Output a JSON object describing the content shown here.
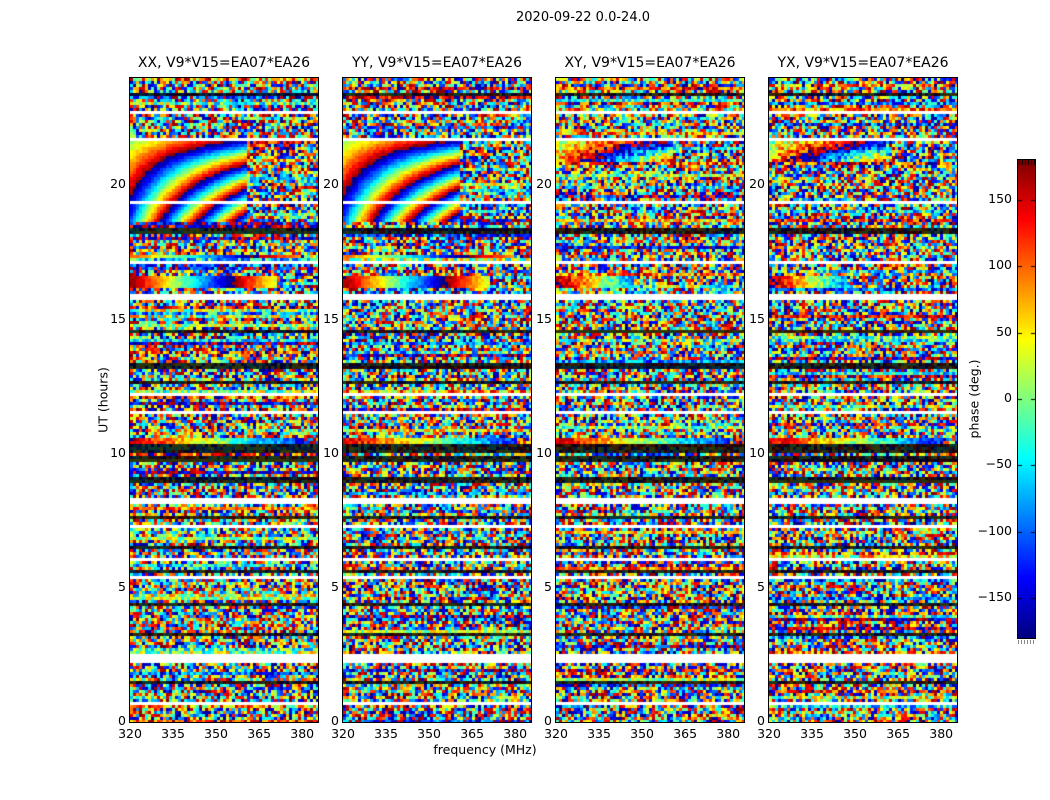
{
  "figure": {
    "suptitle": "2020-09-22 0.0-24.0",
    "xlabel": "frequency (MHz)",
    "ylabel": "UT (hours)",
    "colorbar_label": "phase (deg.)"
  },
  "chart_data": {
    "type": "heatmap",
    "title": "2020-09-22 0.0-24.0",
    "subtitle_meaning": "date and UT hour range of observation",
    "xlabel": "frequency (MHz)",
    "ylabel": "UT (hours)",
    "x_range": [
      320,
      385.5
    ],
    "x_ticks": [
      320,
      335,
      350,
      365,
      380
    ],
    "x_tick_labels": [
      "320",
      "335",
      "350",
      "365",
      "380"
    ],
    "y_range": [
      0,
      24
    ],
    "y_ticks": [
      0,
      5,
      10,
      15,
      20
    ],
    "y_tick_labels": [
      "0",
      "5",
      "10",
      "15",
      "20"
    ],
    "grid": false,
    "colorbar": {
      "label": "phase (deg.)",
      "colormap": "jet",
      "range": [
        -180,
        180
      ],
      "tick_values": [
        150,
        100,
        50,
        0,
        -50,
        -100,
        -150
      ],
      "tick_labels": [
        "150",
        "100",
        "50",
        "0",
        "−50",
        "−100",
        "−150"
      ],
      "top_color": "#7f0000",
      "bottom_color": "#00007f"
    },
    "panels": [
      {
        "title": "XX, V9*V15=EA07*EA26",
        "pol": "XX",
        "fringes": "strong"
      },
      {
        "title": "YY, V9*V15=EA07*EA26",
        "pol": "YY",
        "fringes": "strong"
      },
      {
        "title": "XY, V9*V15=EA07*EA26",
        "pol": "XY",
        "fringes": "weak"
      },
      {
        "title": "YX, V9*V15=EA07*EA26",
        "pol": "YX",
        "fringes": "weak"
      }
    ],
    "content_description": "random wrapped interferometer phases (uniform -180..180 deg speckle) in all panels; coherent rainbow delay fringes in XX and YY between about UT 18.7-21.7 below ~361 MHz; smooth phase-gradient bands near UT 16.3 and UT 10.5; horizontal white rows are flagged times; dark rows are low-amplitude times",
    "flagged_white_rows_ut_hours": [
      {
        "hour": 22.7,
        "width": 0.14
      },
      {
        "hour": 21.75,
        "width": 0.13
      },
      {
        "hour": 19.33,
        "width": 0.16
      },
      {
        "hour": 17.14,
        "width": 0.16
      },
      {
        "hour": 15.84,
        "width": 0.2
      },
      {
        "hour": 12.22,
        "width": 0.16
      },
      {
        "hour": 11.51,
        "width": 0.14
      },
      {
        "hour": 8.24,
        "width": 0.14
      },
      {
        "hour": 7.3,
        "width": 0.14
      },
      {
        "hour": 6.07,
        "width": 0.14
      },
      {
        "hour": 5.37,
        "width": 0.1
      },
      {
        "hour": 2.38,
        "width": 0.3
      },
      {
        "hour": 0.67,
        "width": 0.16
      }
    ],
    "dark_rows_ut_hours": [
      {
        "hour": 23.42,
        "width": 0.14
      },
      {
        "hour": 18.32,
        "width": 0.16
      },
      {
        "hour": 14.55,
        "width": 0.14
      },
      {
        "hour": 13.26,
        "width": 0.14
      },
      {
        "hour": 12.62,
        "width": 0.12
      },
      {
        "hour": 10.19,
        "width": 0.28
      },
      {
        "hour": 9.83,
        "width": 0.18
      },
      {
        "hour": 9.02,
        "width": 0.14
      },
      {
        "hour": 7.66,
        "width": 0.14
      },
      {
        "hour": 6.52,
        "width": 0.14
      },
      {
        "hour": 5.57,
        "width": 0.14
      },
      {
        "hour": 4.42,
        "width": 0.14
      },
      {
        "hour": 3.22,
        "width": 0.14
      },
      {
        "hour": 1.52,
        "width": 0.12
      }
    ],
    "features": {
      "fringe_region_hours": [
        18.68,
        21.72
      ],
      "fringe_freq_fraction": 0.62,
      "weak_fringe_region_hours": [
        20.9,
        21.72
      ],
      "thin_smooth_row_hours": [
        17.25,
        17.4
      ],
      "gradient_band_hours": [
        16.17,
        16.6
      ],
      "gradient_band_freq_fraction_strong": 0.78,
      "gradient_band_freq_fraction_weak": 0.4,
      "warm_band_hours": [
        10.36,
        10.58
      ]
    }
  }
}
